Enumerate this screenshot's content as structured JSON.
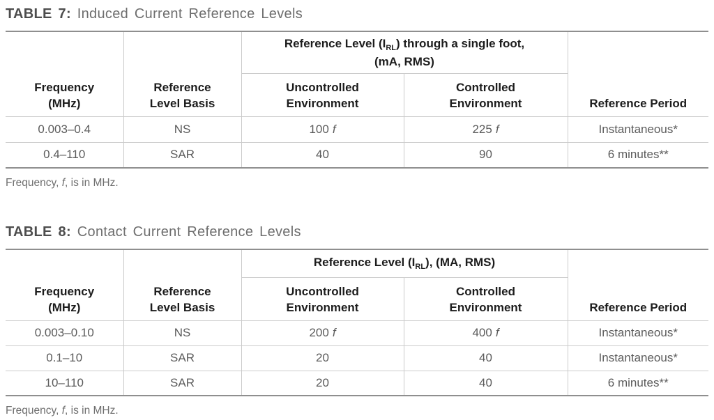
{
  "colors": {
    "background": "#ffffff",
    "header_text": "#1c1c1c",
    "body_text": "#5b5b5b",
    "title_label": "#4d4d4d",
    "title_text": "#6e6e6e",
    "border_outer": "#8f8f8f",
    "border_inner": "#cbcbcb"
  },
  "tables": [
    {
      "title_label": "TABLE 7:",
      "title_text": "Induced Current Reference Levels",
      "headers": {
        "frequency_l1": "Frequency",
        "frequency_l2": "(MHz)",
        "basis_l1": "Reference",
        "basis_l2": "Level Basis",
        "span_pre": "Reference Level (I",
        "span_sub": "RL",
        "span_post": ") through a single foot,",
        "span_line2": "(mA, RMS)",
        "uncontrolled_l1": "Uncontrolled",
        "uncontrolled_l2": "Environment",
        "controlled_l1": "Controlled",
        "controlled_l2": "Environment",
        "period": "Reference Period"
      },
      "rows": [
        {
          "frequency": "0.003–0.4",
          "basis": "NS",
          "uncontrolled": "100",
          "uncontrolled_var": "f",
          "controlled": "225",
          "controlled_var": "f",
          "period": "Instantaneous*"
        },
        {
          "frequency": "0.4–110",
          "basis": "SAR",
          "uncontrolled": "40",
          "uncontrolled_var": "",
          "controlled": "90",
          "controlled_var": "",
          "period": "6 minutes**"
        }
      ],
      "footnote_pre": "Frequency, ",
      "footnote_var": "f",
      "footnote_post": ", is in MHz."
    },
    {
      "title_label": "TABLE 8:",
      "title_text": "Contact Current Reference Levels",
      "headers": {
        "frequency_l1": "Frequency",
        "frequency_l2": "(MHz)",
        "basis_l1": "Reference",
        "basis_l2": "Level Basis",
        "span_pre": "Reference Level (I",
        "span_sub": "RL",
        "span_post": "), (MA, RMS)",
        "span_line2": "",
        "uncontrolled_l1": "Uncontrolled",
        "uncontrolled_l2": "Environment",
        "controlled_l1": "Controlled",
        "controlled_l2": "Environment",
        "period": "Reference Period"
      },
      "rows": [
        {
          "frequency": "0.003–0.10",
          "basis": "NS",
          "uncontrolled": "200",
          "uncontrolled_var": "f",
          "controlled": "400",
          "controlled_var": "f",
          "period": "Instantaneous*"
        },
        {
          "frequency": "0.1–10",
          "basis": "SAR",
          "uncontrolled": "20",
          "uncontrolled_var": "",
          "controlled": "40",
          "controlled_var": "",
          "period": "Instantaneous*"
        },
        {
          "frequency": "10–110",
          "basis": "SAR",
          "uncontrolled": "20",
          "uncontrolled_var": "",
          "controlled": "40",
          "controlled_var": "",
          "period": "6 minutes**"
        }
      ],
      "footnote_pre": "Frequency, ",
      "footnote_var": "f",
      "footnote_post": ", is in MHz."
    }
  ]
}
